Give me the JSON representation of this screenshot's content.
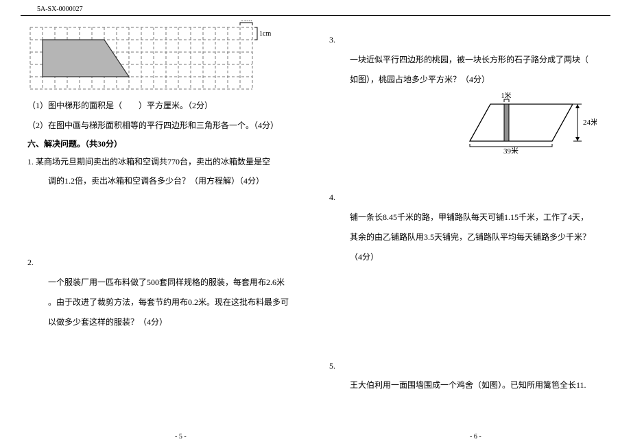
{
  "header": {
    "code": "5A-SX-0000027"
  },
  "grid_figure": {
    "scale_top": "1cm",
    "scale_right": "1cm",
    "cols": 18,
    "rows": 5,
    "cell": 18,
    "grid_color": "#777777",
    "trap_fill": "#b5b5b5",
    "trap_stroke": "#333333",
    "trap_points_cells": [
      [
        1,
        1
      ],
      [
        6,
        1
      ],
      [
        8,
        4
      ],
      [
        1,
        4
      ]
    ]
  },
  "q_grid_1": "（1）图中梯形的面积是（　　）平方厘米。（2分）",
  "q_grid_2": "（2）在图中画与梯形面积相等的平行四边形和三角形各一个。（4分）",
  "section6": "六、解决问题。（共30分）",
  "q1": {
    "num": "1.",
    "line1": "某商场元旦期间卖出的冰箱和空调共770台，卖出的冰箱数量是空",
    "line2": "调的1.2倍，卖出冰箱和空调各多少台？（用方程解）（4分）"
  },
  "q2": {
    "num": "2.",
    "line1": "一个服装厂用一匹布料做了500套同样规格的服装，每套用布2.6米",
    "line2": "。由于改进了裁剪方法，每套节约用布0.2米。现在这批布料最多可",
    "line3": "以做多少套这样的服装？（4分）"
  },
  "q3": {
    "num": "3.",
    "line1": "一块近似平行四边形的桃园，被一块长方形的石子路分成了两块（",
    "line2": "如图），桃园占地多少平方米？（4分）"
  },
  "orchard": {
    "label_top": "1米",
    "label_right": "24米",
    "label_bottom": "39米",
    "stroke": "#000000",
    "road_fill": "#909090"
  },
  "q4": {
    "num": "4.",
    "line1": "铺一条长8.45千米的路，甲铺路队每天可铺1.15千米，工作了4天，",
    "line2": "其余的由乙铺路队用3.5天铺完，乙铺路队平均每天铺路多少千米？",
    "line3": "（4分）"
  },
  "q5": {
    "num": "5.",
    "line1": "王大伯利用一面围墙围成一个鸡舍（如图）。已知所用篱笆全长11."
  },
  "footer": {
    "left": "- 5 -",
    "right": "- 6 -"
  }
}
